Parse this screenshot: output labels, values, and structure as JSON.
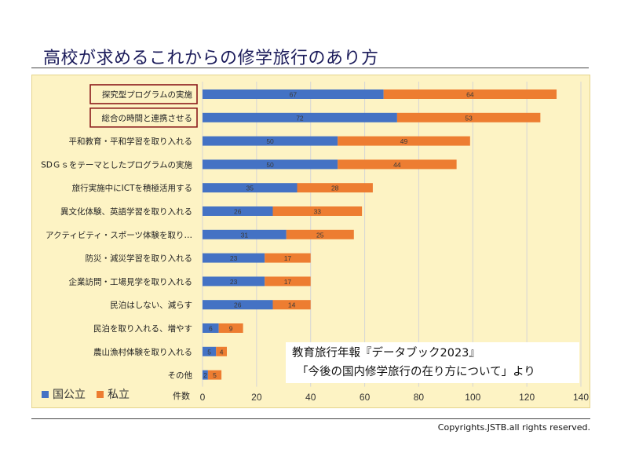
{
  "page": {
    "title": "高校が求めるこれからの修学旅行のあり方",
    "copyright": "Copyrights.JSTB.all rights reserved."
  },
  "source_note": {
    "line1": "教育旅行年報『データブック2023』",
    "line2": "「今後の国内修学旅行の在り方について」より"
  },
  "colors": {
    "series1": "#4472c4",
    "series2": "#ed7d31",
    "panel_bg": "#fdf3c4",
    "highlight_box": "#8b1a1a"
  },
  "chart_data": {
    "type": "bar",
    "orientation": "horizontal",
    "stacked": true,
    "categories": [
      "探究型プログラムの実施",
      "総合の時間と連携させる",
      "平和教育・平和学習を取り入れる",
      "SDＧｓをテーマとしたプログラムの実施",
      "旅行実施中にICTを積極活用する",
      "異文化体験、英語学習を取り入れる",
      "アクティビティ・スポーツ体験を取り…",
      "防災・減災学習を取り入れる",
      "企業訪問・工場見学を取り入れる",
      "民泊はしない、減らす",
      "民泊を取り入れる、増やす",
      "農山漁村体験を取り入れる",
      "その他"
    ],
    "highlighted_categories": [
      0,
      1
    ],
    "series": [
      {
        "name": "国公立",
        "values": [
          67,
          72,
          50,
          50,
          35,
          26,
          31,
          23,
          23,
          26,
          6,
          5,
          2
        ]
      },
      {
        "name": "私立",
        "values": [
          64,
          53,
          49,
          44,
          28,
          33,
          25,
          17,
          17,
          14,
          9,
          4,
          5
        ]
      }
    ],
    "xlabel": "件数",
    "xlim": [
      0,
      140
    ],
    "xticks": [
      "0",
      "20",
      "40",
      "60",
      "80",
      "100",
      "120",
      "140"
    ],
    "grid": true,
    "data_labels": true,
    "legend": "bottom-left"
  }
}
